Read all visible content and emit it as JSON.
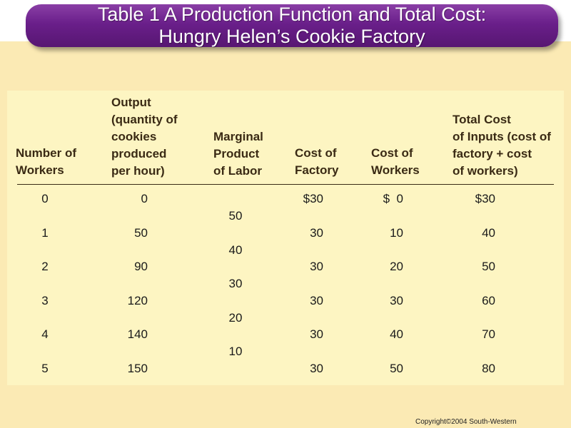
{
  "title": {
    "line1": "Table 1 A Production Function and Total Cost:",
    "line2": "Hungry Helen’s Cookie Factory"
  },
  "table": {
    "headers": [
      [
        "Number of",
        "Workers"
      ],
      [
        "Output",
        "(quantity of",
        "cookies",
        "produced",
        "per hour)"
      ],
      [
        "Marginal",
        "Product",
        "of Labor"
      ],
      [
        "Cost of",
        "Factory"
      ],
      [
        "Cost of",
        "Workers"
      ],
      [
        "Total Cost",
        "of Inputs (cost of",
        "factory + cost",
        "of workers)"
      ]
    ],
    "rows": [
      {
        "workers": "0",
        "output": "0",
        "factory": "$30",
        "worker_cost": "$  0",
        "total": "$30"
      },
      {
        "workers": "1",
        "output": "50",
        "factory": "30",
        "worker_cost": "10",
        "total": "40"
      },
      {
        "workers": "2",
        "output": "90",
        "factory": "30",
        "worker_cost": "20",
        "total": "50"
      },
      {
        "workers": "3",
        "output": "120",
        "factory": "30",
        "worker_cost": "30",
        "total": "60"
      },
      {
        "workers": "4",
        "output": "140",
        "factory": "30",
        "worker_cost": "40",
        "total": "70"
      },
      {
        "workers": "5",
        "output": "150",
        "factory": "30",
        "worker_cost": "50",
        "total": "80"
      }
    ],
    "marginal_products": [
      "50",
      "40",
      "30",
      "20",
      "10"
    ]
  },
  "copyright": "Copyright©2004  South-Western"
}
